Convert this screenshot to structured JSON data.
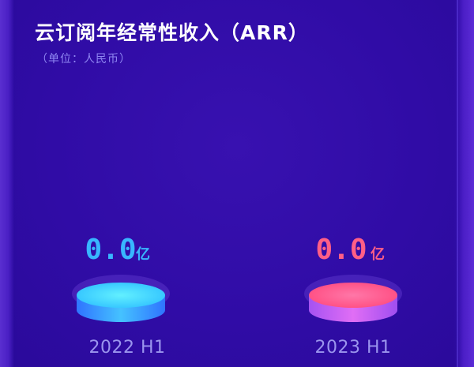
{
  "title": "云订阅年经常性收入（ARR）",
  "subtitle": "（单位：人民币）",
  "chart_data": {
    "type": "bar",
    "title": "云订阅年经常性收入（ARR）",
    "subtitle": "（单位：人民币）",
    "categories": [
      "2022 H1",
      "2023 H1"
    ],
    "values": [
      0.0,
      0.0
    ],
    "value_labels": [
      "0.0",
      "0.0"
    ],
    "unit": "亿",
    "colors": {
      "2022 H1": {
        "label": "#33b8ff",
        "top": "#3fd8ff",
        "side": "#3aa0ff"
      },
      "2023 H1": {
        "label": "#ff5f86",
        "top": "#ff4f8a",
        "side": "#c35cf0"
      }
    },
    "background": "#340fae"
  }
}
